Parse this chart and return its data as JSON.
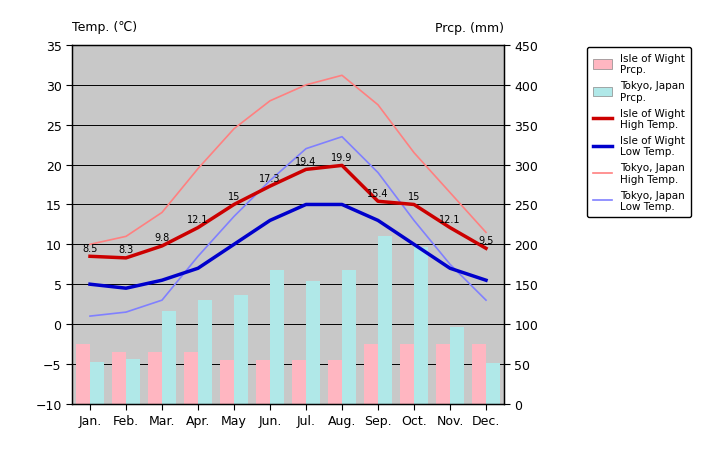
{
  "months": [
    "Jan.",
    "Feb.",
    "Mar.",
    "Apr.",
    "May",
    "Jun.",
    "Jul.",
    "Aug.",
    "Sep.",
    "Oct.",
    "Nov.",
    "Dec."
  ],
  "iow_high": [
    8.5,
    8.3,
    9.8,
    12.1,
    15,
    17.3,
    19.4,
    19.9,
    15.4,
    15,
    12.1,
    9.5
  ],
  "iow_low": [
    5,
    4.5,
    5.5,
    7,
    10,
    13,
    15,
    15,
    13,
    10,
    7,
    5.5
  ],
  "tokyo_high": [
    10,
    11,
    14,
    19.5,
    24.5,
    28,
    30,
    31.2,
    27.5,
    21.5,
    16.5,
    11.5
  ],
  "tokyo_low": [
    1,
    1.5,
    3,
    8.5,
    13.5,
    18,
    22,
    23.5,
    19,
    13,
    7.5,
    3
  ],
  "iow_prcp_mm": [
    75,
    65,
    65,
    65,
    55,
    55,
    55,
    55,
    75,
    75,
    75,
    75
  ],
  "tokyo_prcp_mm": [
    52,
    56,
    117,
    130,
    137,
    168,
    154,
    168,
    210,
    197,
    96,
    51
  ],
  "labels_iow_high": [
    "8.5",
    "8.3",
    "9.8",
    "12.1",
    "15",
    "17.3",
    "19.4",
    "19.9",
    "15.4",
    "15",
    "12.1",
    "9.5"
  ],
  "bar_width": 0.38,
  "ylim_temp": [
    -10,
    35
  ],
  "ylim_prcp": [
    0,
    450
  ],
  "background_color": "#c8c8c8",
  "iow_prcp_color": "#ffb6c1",
  "tokyo_prcp_color": "#b0e8e8",
  "iow_high_color": "#cc0000",
  "iow_low_color": "#0000cc",
  "tokyo_high_color": "#ff8080",
  "tokyo_low_color": "#8080ff",
  "title_left": "Temp. (℃)",
  "title_right": "Prcp. (mm)"
}
